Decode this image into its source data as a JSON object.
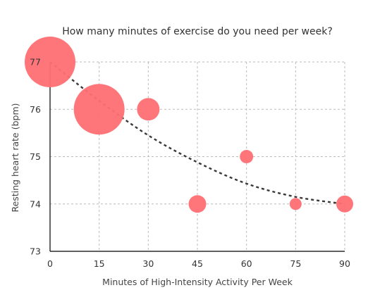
{
  "chart_data": {
    "type": "scatter",
    "title": "How many minutes of exercise do you need per week?",
    "xlabel": "Minutes of High-Intensity Activity Per Week",
    "ylabel": "Resting heart rate (bpm)",
    "xlim": [
      0,
      90
    ],
    "ylim": [
      73,
      77
    ],
    "xticks": [
      0,
      15,
      30,
      45,
      60,
      75,
      90
    ],
    "yticks": [
      73,
      74,
      75,
      76,
      77
    ],
    "grid": true,
    "legend": "none",
    "colors": {
      "bubble": "#ff6f73",
      "trend": "#3a3a3a"
    },
    "points": [
      {
        "x": 0,
        "y": 77,
        "size": 36
      },
      {
        "x": 15,
        "y": 76,
        "size": 36
      },
      {
        "x": 30,
        "y": 76,
        "size": 16
      },
      {
        "x": 45,
        "y": 74,
        "size": 12.5
      },
      {
        "x": 60,
        "y": 75,
        "size": 9.5
      },
      {
        "x": 75,
        "y": 74,
        "size": 8.5
      },
      {
        "x": 90,
        "y": 74,
        "size": 12
      }
    ],
    "trendline": [
      {
        "x": 0,
        "y": 77
      },
      {
        "x": 15,
        "y": 76.18
      },
      {
        "x": 30,
        "y": 75.45
      },
      {
        "x": 45,
        "y": 74.88
      },
      {
        "x": 60,
        "y": 74.43
      },
      {
        "x": 75,
        "y": 74.15
      },
      {
        "x": 90,
        "y": 74
      }
    ]
  }
}
